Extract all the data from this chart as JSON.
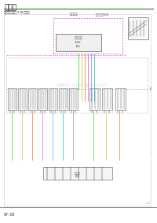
{
  "title": "电路图",
  "subtitle": "发动机管理系统-2.8L柴油机",
  "page_number": "97-38",
  "watermark": "www.sautogo.com",
  "bg_color": "#ffffff",
  "title_color": "#111111",
  "subtitle_color": "#333333",
  "page_color": "#333333",
  "watermark_color": "#cccccc",
  "line_underline": "#2a7a2a",
  "diagram_border": "#888888",
  "dashed_border": "#aaaaaa",
  "green_line": "#00bb00",
  "yellow_line": "#ddaa00",
  "blue_line": "#4488ff",
  "pink_line": "#dd44aa",
  "orange_line": "#dd6600",
  "cyan_line": "#00aaaa",
  "component_edge": "#666666",
  "component_face": "#f8f8f8",
  "text_dark": "#222222",
  "bottom_bar": "#666666"
}
